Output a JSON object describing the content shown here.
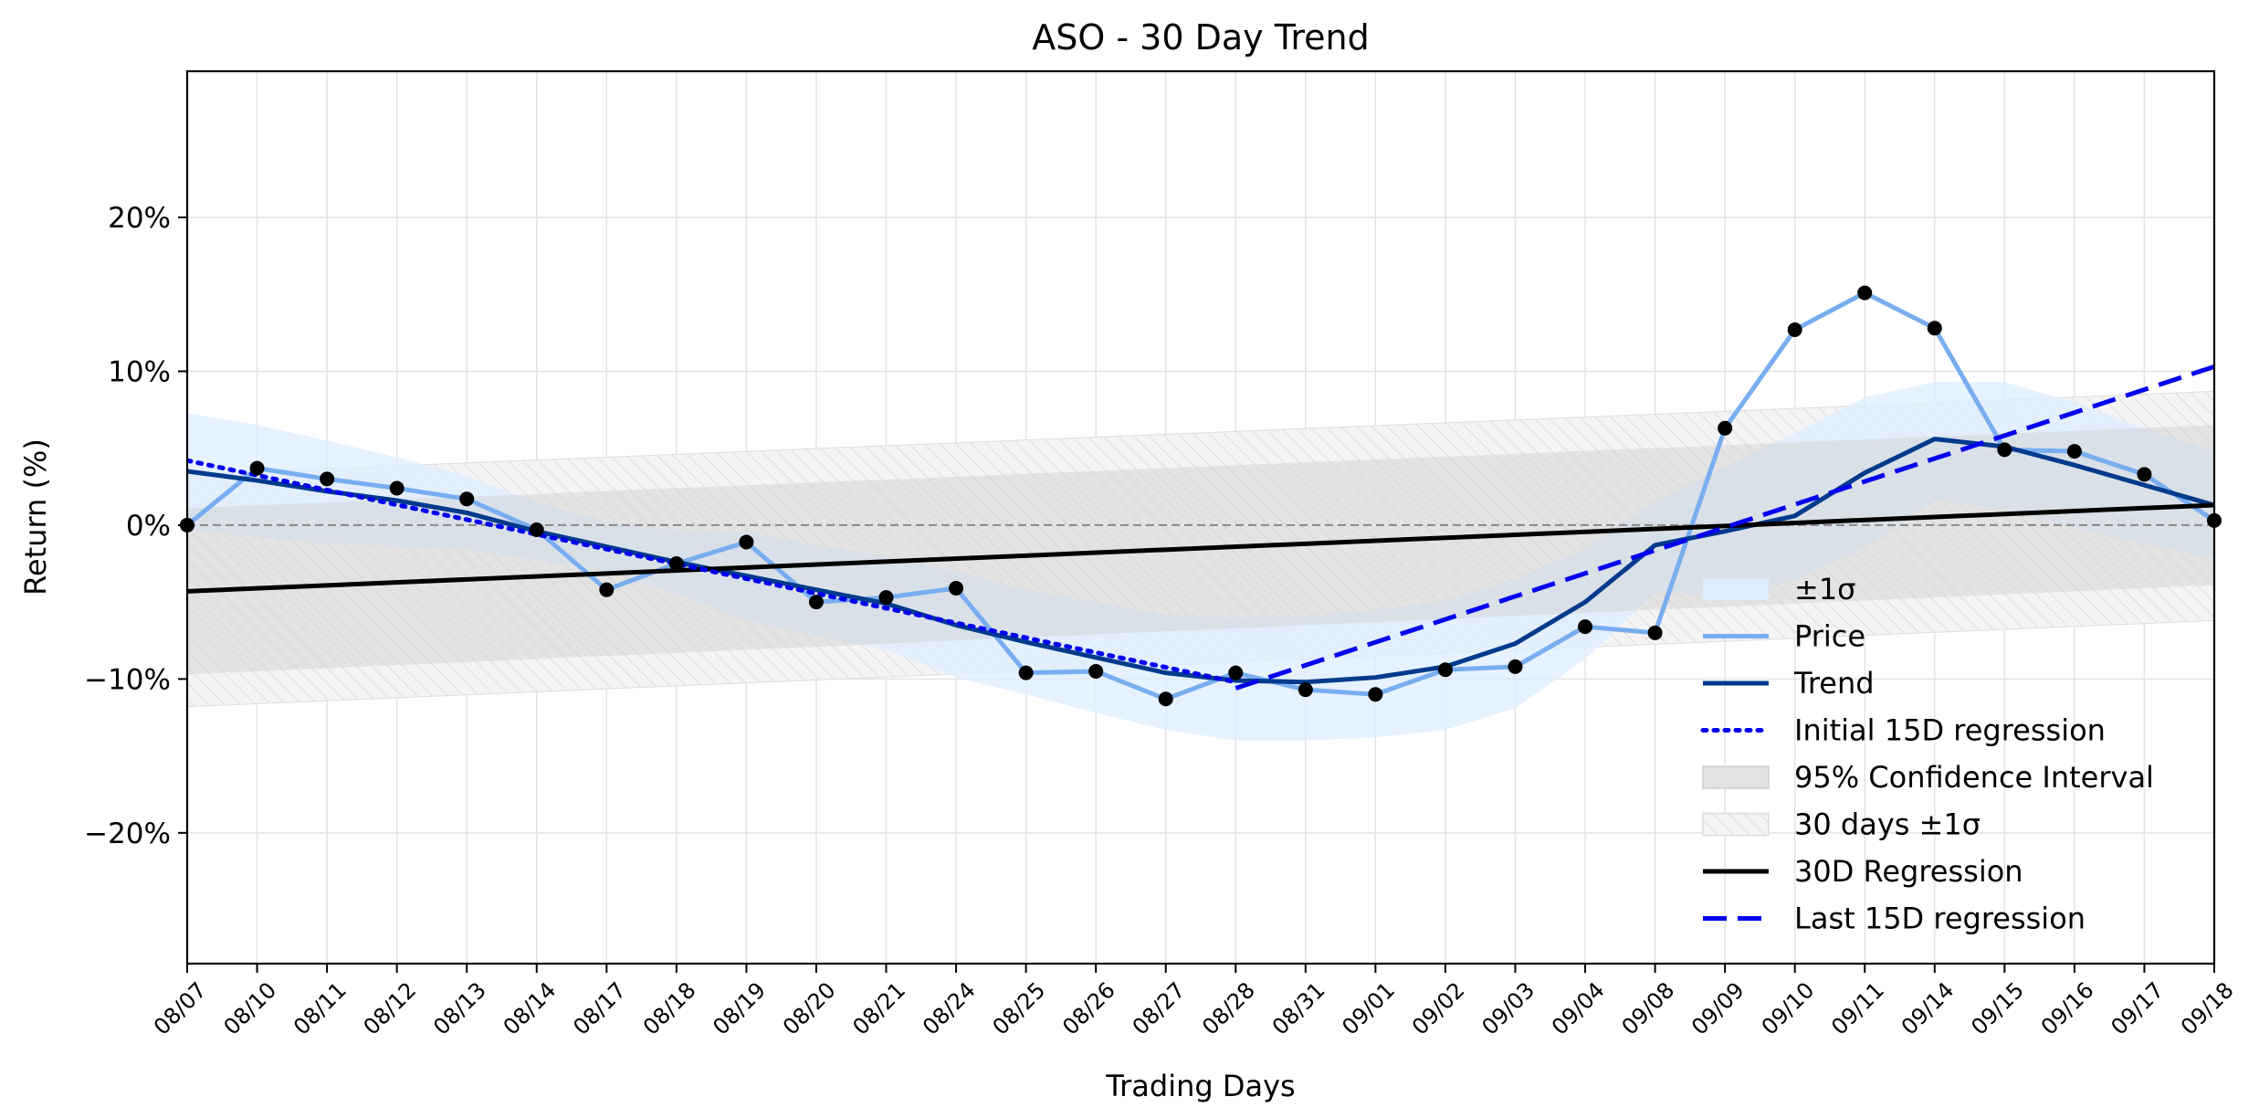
{
  "chart_data": {
    "type": "line",
    "title": "ASO - 30 Day Trend",
    "xlabel": "Trading Days",
    "ylabel": "Return (%)",
    "ylim": [
      -28.5,
      29.5
    ],
    "yticks": [
      -20,
      -10,
      0,
      10,
      20
    ],
    "ytick_labels": [
      "−20%",
      "−10%",
      "0%",
      "10%",
      "20%"
    ],
    "grid": true,
    "legend_position": "lower-right",
    "categories": [
      "08/07",
      "08/10",
      "08/11",
      "08/12",
      "08/13",
      "08/14",
      "08/17",
      "08/18",
      "08/19",
      "08/20",
      "08/21",
      "08/24",
      "08/25",
      "08/26",
      "08/27",
      "08/28",
      "08/31",
      "09/01",
      "09/02",
      "09/03",
      "09/04",
      "09/08",
      "09/09",
      "09/10",
      "09/11",
      "09/14",
      "09/15",
      "09/16",
      "09/17",
      "09/18"
    ],
    "series": [
      {
        "name": "Price",
        "color": "#78aef0",
        "values": [
          0.0,
          3.7,
          3.0,
          2.4,
          1.7,
          -0.3,
          -4.2,
          -2.5,
          -1.1,
          -5.0,
          -4.7,
          -4.1,
          -9.6,
          -9.5,
          -11.3,
          -9.6,
          -10.7,
          -11.0,
          -9.4,
          -9.2,
          -6.6,
          -7.0,
          6.3,
          12.7,
          15.1,
          12.8,
          4.9,
          4.8,
          3.3,
          0.3
        ]
      },
      {
        "name": "Trend",
        "color": "#003a8c",
        "values": [
          3.5,
          2.9,
          2.2,
          1.6,
          0.8,
          -0.4,
          -1.4,
          -2.4,
          -3.3,
          -4.2,
          -5.1,
          -6.5,
          -7.6,
          -8.6,
          -9.6,
          -10.1,
          -10.2,
          -9.9,
          -9.2,
          -7.7,
          -5.0,
          -1.3,
          -0.4,
          0.6,
          3.4,
          5.6,
          5.1,
          3.9,
          2.6,
          1.3
        ]
      },
      {
        "name": "Initial 15D regression",
        "color": "#0000ee",
        "x_range": [
          "08/07",
          "08/28"
        ],
        "start": 4.2,
        "end": -10.2
      },
      {
        "name": "30D Regression",
        "color": "#000000",
        "x_range": [
          "08/07",
          "09/18"
        ],
        "start": -4.3,
        "end": 1.3
      },
      {
        "name": "Last 15D regression",
        "color": "#0000ee",
        "x_range": [
          "08/28",
          "09/18"
        ],
        "start": -10.6,
        "end": 10.3
      }
    ],
    "bands": [
      {
        "name": "±1σ",
        "color": "#ddeeff",
        "upper": [
          7.3,
          6.5,
          5.5,
          4.4,
          3.2,
          1.5,
          0.2,
          -0.3,
          -0.4,
          -1.3,
          -2.0,
          -3.0,
          -4.2,
          -5.0,
          -5.8,
          -6.0,
          -5.9,
          -5.5,
          -4.9,
          -3.5,
          -1.5,
          1.6,
          3.8,
          6.0,
          8.3,
          9.3,
          9.3,
          8.0,
          6.3,
          4.8
        ],
        "lower": [
          -0.3,
          -0.8,
          -1.2,
          -1.4,
          -1.6,
          -2.3,
          -3.0,
          -4.5,
          -6.2,
          -7.2,
          -8.1,
          -9.9,
          -11.0,
          -12.2,
          -13.3,
          -14.0,
          -14.0,
          -13.8,
          -13.3,
          -11.9,
          -8.7,
          -4.4,
          -4.6,
          -3.6,
          -1.5,
          1.6,
          1.0,
          -0.2,
          -1.2,
          -2.2
        ]
      },
      {
        "name": "95% Confidence Interval",
        "color": "#cfcfcf",
        "upper_start": 1.1,
        "upper_end": 6.5,
        "lower_start": -9.7,
        "lower_end": -3.9
      },
      {
        "name": "30 days ±1σ",
        "color": "#f2f2f2",
        "upper_start": 3.3,
        "upper_end": 8.7,
        "lower_start": -11.8,
        "lower_end": -6.2
      }
    ],
    "markers": {
      "color": "#000000",
      "series": "Price"
    },
    "zero_line": {
      "value": 0,
      "style": "dashed",
      "color": "#888888"
    },
    "legend": [
      "±1σ",
      "Price",
      "Trend",
      "Initial 15D regression",
      "95% Confidence Interval",
      "30 days ±1σ",
      "30D Regression",
      "Last 15D regression"
    ]
  }
}
